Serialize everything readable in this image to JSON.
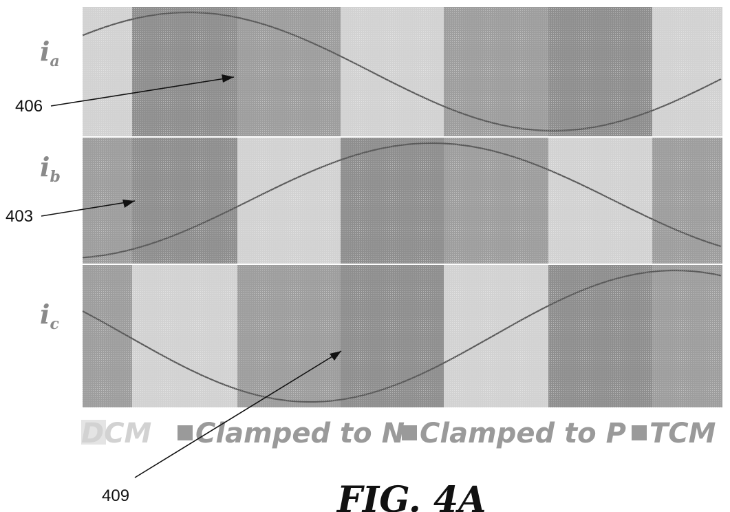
{
  "phases": [
    {
      "symbol": "i",
      "sub": "a",
      "segments": [
        "DCM",
        "TCM",
        "TCM",
        "DCM",
        "TCM",
        "TCM",
        "DCM"
      ]
    },
    {
      "symbol": "i",
      "sub": "b",
      "segments": [
        "TCM",
        "TCM",
        "DCM",
        "TCM",
        "TCM",
        "DCM",
        "TCM"
      ]
    },
    {
      "symbol": "i",
      "sub": "c",
      "segments": [
        "TCM",
        "DCM",
        "TCM",
        "TCM",
        "DCM",
        "TCM",
        "TCM"
      ]
    }
  ],
  "legend": [
    {
      "label": "DCM",
      "color": "#d2d2d2",
      "swatch": false
    },
    {
      "label": "Clamped to N",
      "color": "#9a9a9a",
      "swatch": true
    },
    {
      "label": "Clamped to P",
      "color": "#9a9a9a",
      "swatch": true
    },
    {
      "label": "TCM",
      "color": "#9a9a9a",
      "swatch": true
    }
  ],
  "references": [
    {
      "label": "406"
    },
    {
      "label": "403"
    },
    {
      "label": "409"
    }
  ],
  "figure_label": "FIG. 4A",
  "colors": {
    "dcm": "#d2d2d2",
    "tcm": "#9e9e9e",
    "tcm_dark": "#8f8f8f",
    "waveform": "#5a5a5a",
    "text": "#111111"
  }
}
